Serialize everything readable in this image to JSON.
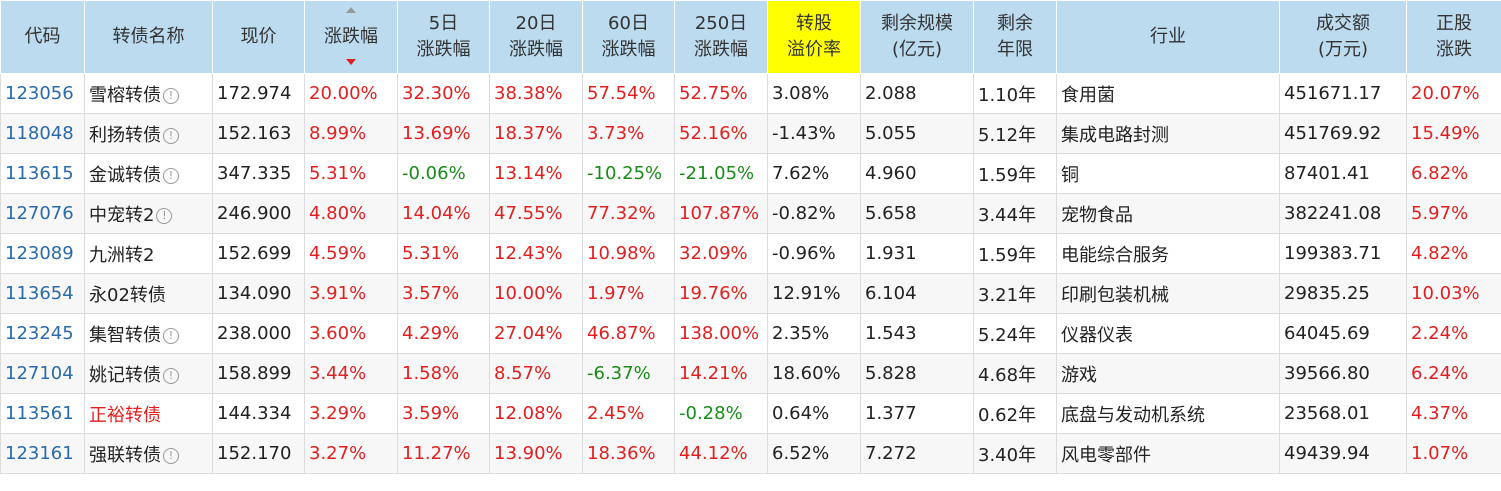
{
  "header": {
    "code": "代码",
    "name": "转债名称",
    "price": "现价",
    "change": "涨跌幅",
    "chg5_a": "5日",
    "chg5_b": "涨跌幅",
    "chg20_a": "20日",
    "chg20_b": "涨跌幅",
    "chg60_a": "60日",
    "chg60_b": "涨跌幅",
    "chg250_a": "250日",
    "chg250_b": "涨跌幅",
    "premium_a": "转股",
    "premium_b": "溢价率",
    "scale_a": "剩余规模",
    "scale_b": "(亿元)",
    "years_a": "剩余",
    "years_b": "年限",
    "industry": "行业",
    "volume_a": "成交额",
    "volume_b": "(万元)",
    "stock_a": "正股",
    "stock_b": "涨跌"
  },
  "colors": {
    "header_bg": "#bcdbef",
    "highlight": "#ffff00",
    "up": "#e02020",
    "down": "#1a8a1a",
    "code": "#2a6aa8"
  },
  "rows": [
    {
      "code": "123056",
      "name": "雪榕转债",
      "info": true,
      "name_red": false,
      "price": "172.974",
      "change": "20.00%",
      "chg5": "32.30%",
      "chg20": "38.38%",
      "chg60": "57.54%",
      "chg250": "52.75%",
      "premium": "3.08%",
      "scale": "2.088",
      "years": "1.10年",
      "industry": "食用菌",
      "volume": "451671.17",
      "stock": "20.07%"
    },
    {
      "code": "118048",
      "name": "利扬转债",
      "info": true,
      "name_red": false,
      "price": "152.163",
      "change": "8.99%",
      "chg5": "13.69%",
      "chg20": "18.37%",
      "chg60": "3.73%",
      "chg250": "52.16%",
      "premium": "-1.43%",
      "scale": "5.055",
      "years": "5.12年",
      "industry": "集成电路封测",
      "volume": "451769.92",
      "stock": "15.49%"
    },
    {
      "code": "113615",
      "name": "金诚转债",
      "info": true,
      "name_red": false,
      "price": "347.335",
      "change": "5.31%",
      "chg5": "-0.06%",
      "chg20": "13.14%",
      "chg60": "-10.25%",
      "chg250": "-21.05%",
      "premium": "7.62%",
      "scale": "4.960",
      "years": "1.59年",
      "industry": "铜",
      "volume": "87401.41",
      "stock": "6.82%"
    },
    {
      "code": "127076",
      "name": "中宠转2",
      "info": true,
      "name_red": false,
      "price": "246.900",
      "change": "4.80%",
      "chg5": "14.04%",
      "chg20": "47.55%",
      "chg60": "77.32%",
      "chg250": "107.87%",
      "premium": "-0.82%",
      "scale": "5.658",
      "years": "3.44年",
      "industry": "宠物食品",
      "volume": "382241.08",
      "stock": "5.97%"
    },
    {
      "code": "123089",
      "name": "九洲转2",
      "info": false,
      "name_red": false,
      "price": "152.699",
      "change": "4.59%",
      "chg5": "5.31%",
      "chg20": "12.43%",
      "chg60": "10.98%",
      "chg250": "32.09%",
      "premium": "-0.96%",
      "scale": "1.931",
      "years": "1.59年",
      "industry": "电能综合服务",
      "volume": "199383.71",
      "stock": "4.82%"
    },
    {
      "code": "113654",
      "name": "永02转债",
      "info": false,
      "name_red": false,
      "price": "134.090",
      "change": "3.91%",
      "chg5": "3.57%",
      "chg20": "10.00%",
      "chg60": "1.97%",
      "chg250": "19.76%",
      "premium": "12.91%",
      "scale": "6.104",
      "years": "3.21年",
      "industry": "印刷包装机械",
      "volume": "29835.25",
      "stock": "10.03%"
    },
    {
      "code": "123245",
      "name": "集智转债",
      "info": true,
      "name_red": false,
      "price": "238.000",
      "change": "3.60%",
      "chg5": "4.29%",
      "chg20": "27.04%",
      "chg60": "46.87%",
      "chg250": "138.00%",
      "premium": "2.35%",
      "scale": "1.543",
      "years": "5.24年",
      "industry": "仪器仪表",
      "volume": "64045.69",
      "stock": "2.24%"
    },
    {
      "code": "127104",
      "name": "姚记转债",
      "info": true,
      "name_red": false,
      "price": "158.899",
      "change": "3.44%",
      "chg5": "1.58%",
      "chg20": "8.57%",
      "chg60": "-6.37%",
      "chg250": "14.21%",
      "premium": "18.60%",
      "scale": "5.828",
      "years": "4.68年",
      "industry": "游戏",
      "volume": "39566.80",
      "stock": "6.24%"
    },
    {
      "code": "113561",
      "name": "正裕转债",
      "info": false,
      "name_red": true,
      "price": "144.334",
      "change": "3.29%",
      "chg5": "3.59%",
      "chg20": "12.08%",
      "chg60": "2.45%",
      "chg250": "-0.28%",
      "premium": "0.64%",
      "scale": "1.377",
      "years": "0.62年",
      "industry": "底盘与发动机系统",
      "volume": "23568.01",
      "stock": "4.37%"
    },
    {
      "code": "123161",
      "name": "强联转债",
      "info": true,
      "name_red": false,
      "price": "152.170",
      "change": "3.27%",
      "chg5": "11.27%",
      "chg20": "13.90%",
      "chg60": "18.36%",
      "chg250": "44.12%",
      "premium": "6.52%",
      "scale": "7.272",
      "years": "3.40年",
      "industry": "风电零部件",
      "volume": "49439.94",
      "stock": "1.07%"
    }
  ]
}
